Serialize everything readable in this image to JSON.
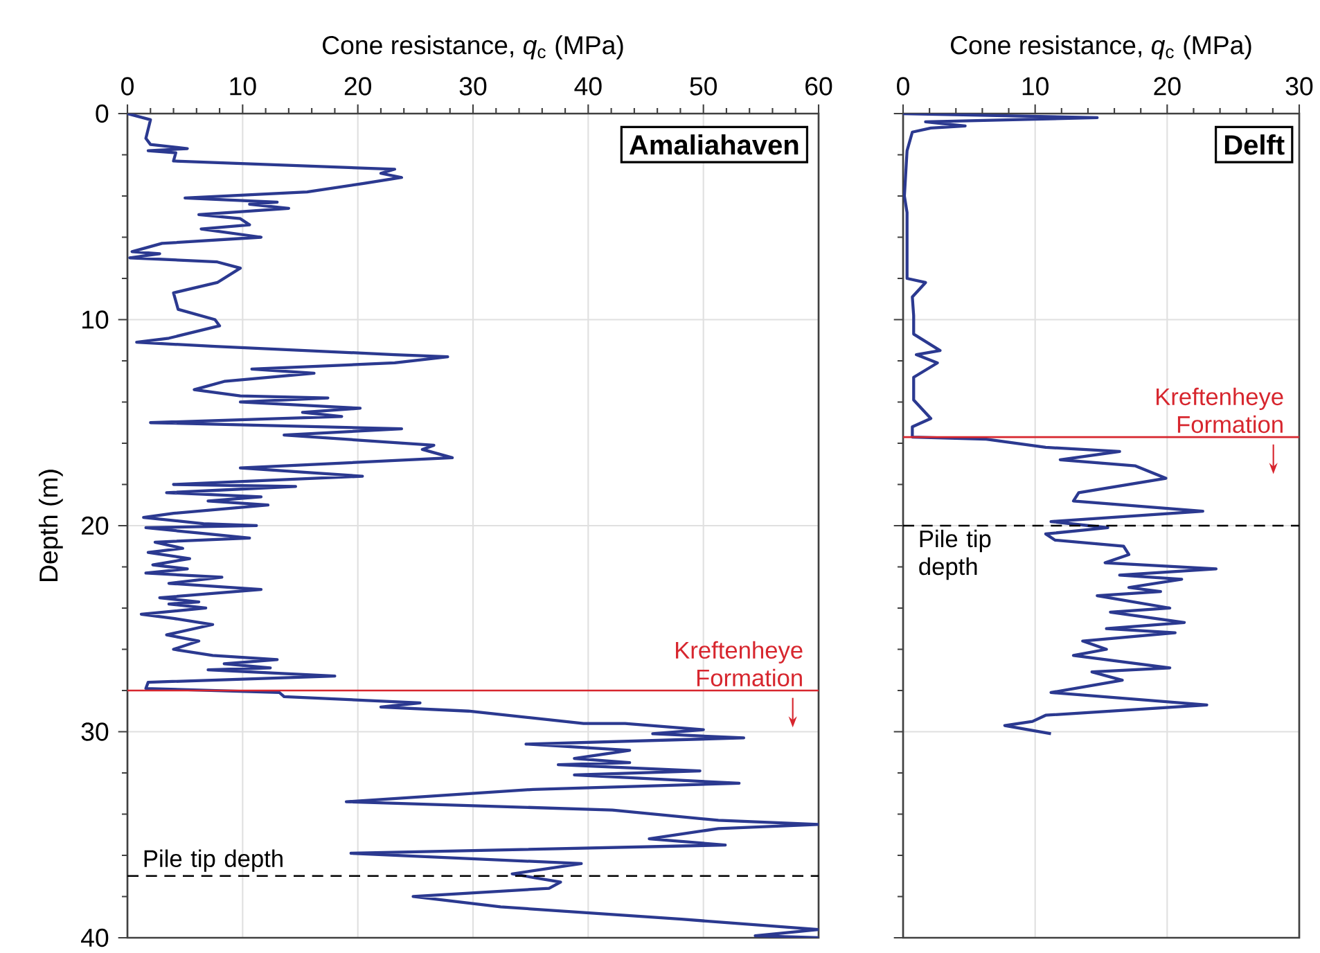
{
  "chart_data": [
    {
      "type": "line",
      "title": "Amaliahaven",
      "xlabel": "Cone resistance,  *q*$_{c}$  (MPa)",
      "ylabel": "Depth (m)",
      "xlim": [
        0,
        60
      ],
      "xticks": [
        0,
        10,
        20,
        30,
        40,
        50,
        60
      ],
      "ylim": [
        40,
        0
      ],
      "yticks": [
        0,
        10,
        20,
        30,
        40
      ],
      "grid": true,
      "series": [
        {
          "color": "#2b3990",
          "x": [
            0,
            2,
            1.6,
            2,
            5.2,
            1.8,
            4.2,
            4,
            23.2,
            22,
            23.8,
            20.4,
            15.6,
            5,
            13,
            10.6,
            14,
            6.2,
            9.8,
            10.6,
            6.4,
            11.6,
            3,
            0.4,
            2.8,
            0.2,
            7.8,
            9.8,
            7.8,
            4,
            4.4,
            7.6,
            8,
            3.6,
            0.8,
            7.6,
            23.2,
            27.8,
            23.2,
            10.8,
            16.2,
            8.4,
            5.8,
            9.8,
            17.4,
            9.8,
            20.2,
            15.2,
            18.6,
            2,
            23.8,
            13.6,
            26.6,
            25.6,
            28.2,
            9.8,
            20.4,
            4,
            14.6,
            3.4,
            11.6,
            7,
            12.2,
            4,
            1.4,
            6.6,
            11.2,
            1.6,
            7,
            10.6,
            2.4,
            4.8,
            1.8,
            5.4,
            2.2,
            5.2,
            1.6,
            8.2,
            3.6,
            11.6,
            2.8,
            6.2,
            3.6,
            6.8,
            1.2,
            4,
            7.4,
            3.4,
            6.2,
            4,
            7.4,
            13,
            8.4,
            12.4,
            7,
            18,
            1.8,
            1.6,
            13.2,
            13.6,
            25.4,
            22,
            29.6,
            39.6,
            43.2,
            50,
            45.6,
            53.5,
            34.6,
            43.6,
            38.8,
            43.6,
            37.4,
            49.7,
            38.8,
            53.1,
            35.2,
            19,
            42.1,
            51.3,
            60,
            51.3,
            45.3,
            51.9,
            19.4,
            39.4,
            33.4,
            37.6,
            36.6,
            24.8,
            32.4,
            48.1,
            60,
            54.5,
            60
          ],
          "values": [
            0,
            0.3,
            1.2,
            1.5,
            1.7,
            1.8,
            1.9,
            2.3,
            2.7,
            2.9,
            3.1,
            3.4,
            3.8,
            4.1,
            4.3,
            4.4,
            4.6,
            4.9,
            5.1,
            5.4,
            5.6,
            6.0,
            6.3,
            6.7,
            6.8,
            7.0,
            7.2,
            7.5,
            8.2,
            8.7,
            9.5,
            10.0,
            10.3,
            10.9,
            11.1,
            11.3,
            11.7,
            11.8,
            12.1,
            12.4,
            12.6,
            13.0,
            13.4,
            13.7,
            13.8,
            14.0,
            14.3,
            14.5,
            14.7,
            15.0,
            15.3,
            15.6,
            16.1,
            16.3,
            16.7,
            17.2,
            17.6,
            18.0,
            18.1,
            18.4,
            18.6,
            18.8,
            19.0,
            19.4,
            19.6,
            19.9,
            20.0,
            20.1,
            20.4,
            20.6,
            20.8,
            21.1,
            21.3,
            21.6,
            21.9,
            22.1,
            22.3,
            22.5,
            22.8,
            23.1,
            23.5,
            23.7,
            23.8,
            24.0,
            24.3,
            24.5,
            24.8,
            25.3,
            25.6,
            26.0,
            26.3,
            26.5,
            26.7,
            26.9,
            27.0,
            27.3,
            27.6,
            27.9,
            28.1,
            28.3,
            28.6,
            28.8,
            29.0,
            29.6,
            29.6,
            29.9,
            30.1,
            30.3,
            30.6,
            30.9,
            31.3,
            31.5,
            31.6,
            31.9,
            32.1,
            32.5,
            32.8,
            33.4,
            33.8,
            34.3,
            34.5,
            34.7,
            35.2,
            35.5,
            35.9,
            36.4,
            36.9,
            37.3,
            37.6,
            38.0,
            38.5,
            39.1,
            39.6,
            39.9,
            40
          ]
        }
      ],
      "ref_lines": [
        {
          "axis": "y",
          "value": 28,
          "label": "Kreftenheye Formation",
          "color": "#d7262e",
          "line_style": "solid"
        },
        {
          "axis": "y",
          "value": 37,
          "label": "Pile tip depth",
          "color": "#000000",
          "line_style": "dashed"
        }
      ]
    },
    {
      "type": "line",
      "title": "Delft",
      "xlabel": "Cone resistance,  *q*$_{c}$  (MPa)",
      "xlim": [
        0,
        30
      ],
      "xticks": [
        0,
        10,
        20,
        30
      ],
      "ylim": [
        40,
        0
      ],
      "yticks": [
        0,
        10,
        20,
        30,
        40
      ],
      "grid": true,
      "tick_labels": "x",
      "series": [
        {
          "color": "#2b3990",
          "x": [
            0,
            14.7,
            1.7,
            4.7,
            2.1,
            0.7,
            0.3,
            0.1,
            0.3,
            0.3,
            1.7,
            0.7,
            0.8,
            0.8,
            2.8,
            1,
            2.6,
            0.8,
            0.8,
            2.1,
            0.7,
            0.7,
            6.3,
            10.8,
            16.4,
            11.9,
            17.6,
            19.9,
            13.3,
            12.9,
            22.7,
            11.2,
            15.5,
            10.8,
            11.5,
            16.7,
            17.1,
            15.3,
            23.7,
            16.4,
            21.1,
            17.1,
            19.5,
            14.7,
            20.2,
            15.7,
            21.3,
            15.4,
            20.6,
            13.6,
            15.4,
            12.9,
            20.2,
            14.3,
            16.6,
            11.2,
            23.0,
            10.8,
            9.8,
            7.7,
            11.2
          ],
          "values": [
            0,
            0.2,
            0.4,
            0.6,
            0.7,
            0.9,
            1.8,
            4.0,
            4.8,
            8.0,
            8.2,
            8.9,
            9.8,
            10.7,
            11.5,
            11.7,
            12.1,
            12.8,
            13.9,
            14.8,
            15.2,
            15.7,
            15.8,
            16.2,
            16.4,
            16.8,
            17.1,
            17.7,
            18.4,
            18.8,
            19.3,
            19.8,
            20.1,
            20.4,
            20.7,
            21.0,
            21.4,
            21.8,
            22.1,
            22.4,
            22.6,
            23.0,
            23.2,
            23.4,
            24.0,
            24.2,
            24.7,
            25.0,
            25.2,
            25.6,
            26.0,
            26.3,
            26.9,
            27.1,
            27.5,
            28.1,
            28.7,
            29.2,
            29.5,
            29.7,
            30.1
          ]
        }
      ],
      "ref_lines": [
        {
          "axis": "y",
          "value": 15.7,
          "label": "Kreftenheye Formation",
          "color": "#d7262e",
          "line_style": "solid"
        },
        {
          "axis": "y",
          "value": 20,
          "label": "Pile tip depth",
          "color": "#000000",
          "line_style": "dashed"
        }
      ]
    }
  ]
}
